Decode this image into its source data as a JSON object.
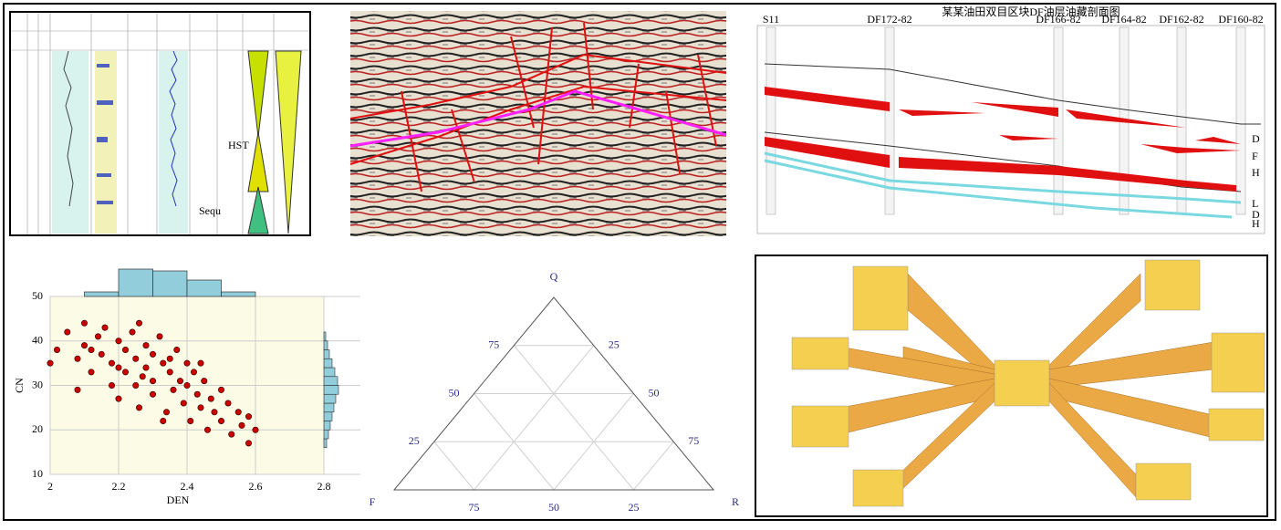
{
  "chart_data": [
    {
      "type": "scatter",
      "xlabel": "DEN",
      "ylabel": "CN",
      "color": "#cc0000",
      "xlim": [
        2,
        2.8
      ],
      "ylim": [
        10,
        50
      ],
      "xticks": [
        2,
        2.2,
        2.4,
        2.6,
        2.8
      ],
      "yticks": [
        10,
        20,
        30,
        40,
        50
      ],
      "grid": true,
      "x": [
        2.02,
        2.05,
        2.08,
        2.1,
        2.1,
        2.12,
        2.14,
        2.15,
        2.16,
        2.18,
        2.18,
        2.2,
        2.2,
        2.22,
        2.22,
        2.24,
        2.25,
        2.25,
        2.26,
        2.28,
        2.28,
        2.3,
        2.3,
        2.3,
        2.32,
        2.33,
        2.34,
        2.35,
        2.36,
        2.37,
        2.38,
        2.39,
        2.4,
        2.4,
        2.41,
        2.42,
        2.43,
        2.44,
        2.45,
        2.46,
        2.47,
        2.48,
        2.5,
        2.5,
        2.52,
        2.53,
        2.55,
        2.56,
        2.58,
        2.58,
        2.2,
        2.27,
        2.35,
        2.12,
        2.0,
        2.6,
        2.08,
        2.44,
        2.33,
        2.26
      ],
      "y": [
        38,
        42,
        36,
        44,
        39,
        33,
        41,
        37,
        43,
        35,
        30,
        40,
        27,
        38,
        33,
        42,
        36,
        30,
        25,
        39,
        34,
        37,
        31,
        28,
        41,
        35,
        24,
        33,
        29,
        38,
        31,
        26,
        35,
        30,
        22,
        33,
        28,
        25,
        31,
        20,
        27,
        24,
        29,
        22,
        26,
        19,
        24,
        21,
        17,
        23,
        34,
        32,
        36,
        38,
        35,
        20,
        29,
        35,
        22,
        44
      ],
      "x_histogram": {
        "bins": [
          2.1,
          2.2,
          2.3,
          2.4,
          2.5,
          2.6
        ],
        "counts": [
          5,
          30,
          28,
          18,
          5
        ],
        "color": "#92cddc"
      },
      "y_histogram": {
        "bins": [
          16,
          18,
          20,
          22,
          24,
          26,
          28,
          30,
          32,
          34,
          36,
          38,
          40,
          42
        ],
        "counts": [
          3,
          5,
          7,
          9,
          11,
          13,
          16,
          15,
          12,
          9,
          6,
          4,
          2
        ],
        "color": "#92cddc"
      }
    },
    {
      "type": "ternary",
      "corners": [
        "Q",
        "F",
        "R"
      ],
      "left_ticks": [
        25,
        50,
        75
      ],
      "right_ticks": [
        25,
        50,
        75
      ],
      "bottom_ticks": [
        25,
        50,
        75
      ],
      "grid": true
    }
  ],
  "well_log": {
    "labels": [
      "HST",
      "Sequ"
    ]
  },
  "cross_section": {
    "title": "某某油田双目区块DF油层油藏剖面图",
    "wells": [
      "S11",
      "DF172-82",
      "DF166-82",
      "DF164-82",
      "DF162-82",
      "DF160-82"
    ],
    "zones": [
      "D",
      "F",
      "H",
      "L",
      "D",
      "H"
    ]
  }
}
